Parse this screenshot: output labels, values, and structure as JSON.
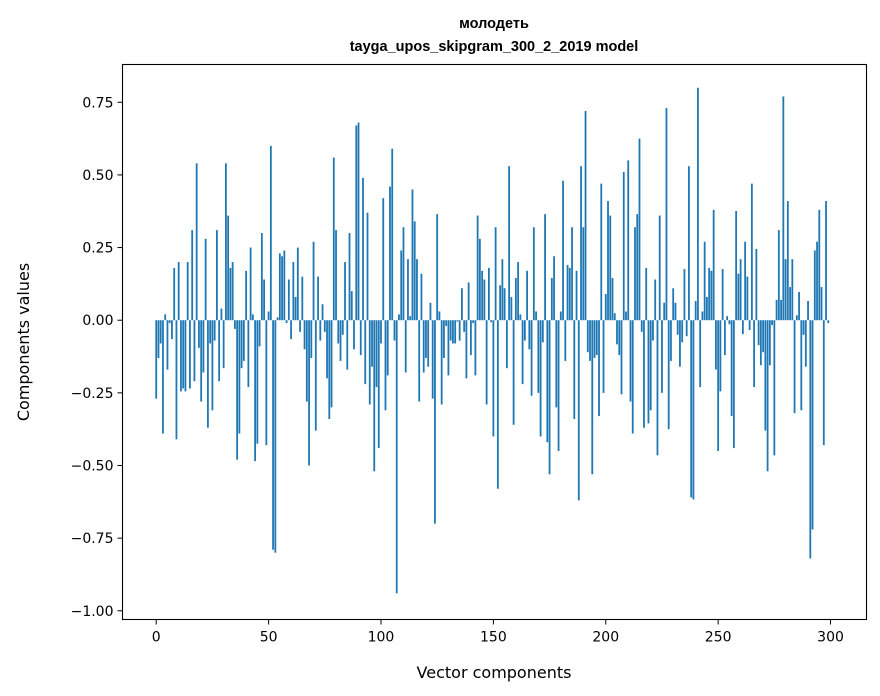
{
  "chart_data": {
    "type": "bar",
    "title": "молодеть",
    "subtitle": "tayga_upos_skipgram_300_2_2019 model",
    "xlabel": "Vector components",
    "ylabel": "Components values",
    "xlim": [
      -15,
      316
    ],
    "ylim": [
      -1.03,
      0.88
    ],
    "x_ticks": [
      0,
      50,
      100,
      150,
      200,
      250,
      300
    ],
    "x_tick_labels": [
      "0",
      "50",
      "100",
      "150",
      "200",
      "250",
      "300"
    ],
    "y_ticks": [
      -1.0,
      -0.75,
      -0.5,
      -0.25,
      0.0,
      0.25,
      0.5,
      0.75
    ],
    "y_tick_labels": [
      "−1.00",
      "−0.75",
      "−0.50",
      "−0.25",
      "0.00",
      "0.25",
      "0.50",
      "0.75"
    ],
    "grid": false,
    "bar_color": "#1f77b4",
    "values": [
      -0.27,
      -0.13,
      -0.08,
      -0.39,
      0.02,
      -0.17,
      -0.01,
      -0.065,
      0.18,
      -0.41,
      0.2,
      -0.245,
      -0.235,
      -0.245,
      0.2,
      -0.235,
      0.31,
      -0.21,
      0.54,
      -0.095,
      -0.28,
      -0.18,
      0.28,
      -0.37,
      -0.08,
      -0.31,
      -0.07,
      0.31,
      -0.21,
      0.04,
      -0.165,
      0.54,
      0.36,
      0.18,
      0.2,
      -0.03,
      -0.48,
      -0.39,
      -0.165,
      -0.14,
      0.17,
      -0.23,
      0.25,
      0.02,
      -0.485,
      -0.425,
      -0.09,
      0.3,
      0.14,
      -0.43,
      0.03,
      0.6,
      -0.79,
      -0.8,
      0.01,
      0.23,
      0.22,
      0.24,
      -0.01,
      0.14,
      -0.065,
      0.2,
      0.08,
      0.25,
      -0.04,
      0.15,
      -0.1,
      -0.28,
      -0.5,
      -0.13,
      0.27,
      -0.38,
      0.15,
      -0.07,
      0.055,
      -0.04,
      -0.2,
      -0.34,
      -0.3,
      0.56,
      0.31,
      -0.08,
      -0.14,
      -0.05,
      0.2,
      -0.17,
      0.3,
      0.1,
      -0.1,
      0.67,
      0.68,
      -0.12,
      0.49,
      -0.22,
      0.37,
      -0.29,
      -0.16,
      -0.52,
      -0.23,
      -0.44,
      -0.08,
      0.42,
      -0.31,
      -0.19,
      0.46,
      0.59,
      -0.07,
      -0.94,
      0.02,
      0.24,
      0.32,
      -0.18,
      0.21,
      0.014,
      0.45,
      0.34,
      0.21,
      -0.28,
      0.16,
      -0.18,
      -0.13,
      -0.16,
      0.06,
      -0.27,
      -0.7,
      0.365,
      0.03,
      -0.29,
      -0.13,
      -0.02,
      -0.19,
      -0.07,
      -0.08,
      -0.08,
      -0.005,
      -0.07,
      0.11,
      -0.04,
      -0.2,
      0.13,
      -0.12,
      -0.01,
      -0.19,
      0.36,
      0.28,
      0.17,
      0.14,
      -0.29,
      0.18,
      -0.007,
      -0.4,
      0.32,
      -0.58,
      0.12,
      0.21,
      0.11,
      -0.165,
      0.53,
      0.08,
      -0.36,
      0.145,
      0.2,
      0.02,
      -0.22,
      -0.07,
      0.17,
      -0.1,
      -0.26,
      0.32,
      0.03,
      -0.25,
      -0.4,
      -0.076,
      0.365,
      -0.42,
      -0.53,
      0.145,
      0.22,
      -0.3,
      -0.45,
      0.03,
      0.48,
      -0.14,
      0.19,
      0.18,
      0.32,
      -0.34,
      0.17,
      -0.62,
      0.53,
      0.32,
      0.72,
      -0.11,
      -0.14,
      -0.53,
      -0.13,
      -0.12,
      -0.33,
      0.47,
      -0.25,
      0.09,
      0.41,
      0.36,
      0.145,
      0.024,
      -0.083,
      -0.12,
      -0.255,
      0.51,
      0.03,
      0.55,
      -0.28,
      -0.39,
      0.32,
      0.365,
      0.625,
      -0.04,
      -0.37,
      0.18,
      -0.355,
      -0.31,
      -0.07,
      0.14,
      -0.465,
      0.36,
      -0.25,
      0.06,
      0.73,
      -0.375,
      -0.14,
      0.11,
      0.06,
      -0.05,
      -0.16,
      -0.076,
      0.176,
      -0.055,
      0.53,
      -0.61,
      -0.617,
      0.066,
      0.8,
      -0.23,
      0.03,
      0.27,
      0.08,
      0.18,
      0.17,
      0.38,
      -0.17,
      -0.45,
      -0.245,
      0.176,
      -0.12,
      0.014,
      -0.014,
      -0.33,
      -0.44,
      0.376,
      0.16,
      0.21,
      -0.048,
      0.27,
      0.15,
      -0.034,
      0.47,
      -0.23,
      0.245,
      -0.086,
      -0.155,
      -0.11,
      -0.38,
      -0.52,
      -0.155,
      -0.017,
      -0.465,
      0.07,
      0.31,
      0.07,
      0.77,
      0.21,
      0.41,
      0.114,
      0.21,
      -0.32,
      0.017,
      0.097,
      -0.31,
      -0.05,
      -0.16,
      0.066,
      -0.82,
      -0.72,
      0.24,
      0.27,
      0.38,
      0.114,
      -0.43,
      0.41,
      -0.01
    ]
  }
}
